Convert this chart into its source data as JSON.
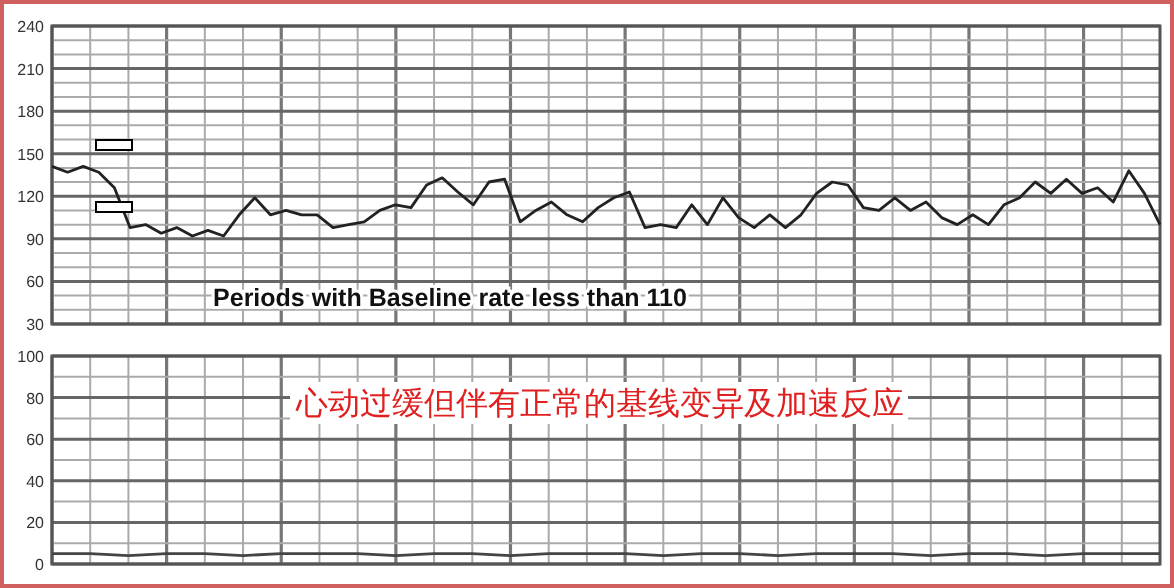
{
  "chart_data": [
    {
      "type": "line",
      "categories": [
        null,
        null,
        null,
        null,
        null,
        null,
        null,
        null,
        null,
        null,
        null,
        null,
        null,
        null,
        null,
        null,
        null,
        null,
        null,
        null,
        null,
        null,
        null,
        null,
        null,
        null,
        null,
        null,
        null,
        null,
        null,
        null,
        null,
        null,
        null,
        null,
        null,
        null,
        null,
        null,
        null,
        null,
        null,
        null,
        null,
        null,
        null,
        null,
        null,
        null,
        null,
        null,
        null,
        null,
        null,
        null,
        null,
        null,
        null,
        null,
        null,
        null,
        null,
        null,
        null,
        null,
        null,
        null,
        null,
        null,
        null,
        null
      ],
      "series": [
        {
          "color": "#222222",
          "values": [
            141,
            137,
            141,
            137,
            126,
            98,
            100,
            94,
            98,
            92,
            96,
            92,
            107,
            119,
            107,
            110,
            107,
            107,
            98,
            100,
            102,
            110,
            114,
            112,
            128,
            133,
            123,
            114,
            130,
            132,
            102,
            110,
            116,
            107,
            102,
            112,
            119,
            123,
            98,
            100,
            98,
            114,
            100,
            119,
            105,
            98,
            107,
            98,
            107,
            122,
            130,
            128,
            112,
            110,
            119,
            110,
            116,
            105,
            100,
            107,
            100,
            114,
            119,
            130,
            122,
            132,
            122,
            126,
            116,
            138,
            122,
            100
          ]
        }
      ],
      "ylim": [
        30,
        240
      ],
      "yticks": [
        30,
        {
          "value": 40,
          "label": null
        },
        {
          "value": 50,
          "label": null
        },
        60,
        {
          "value": 70,
          "label": null
        },
        {
          "value": 80,
          "label": null
        },
        90,
        {
          "value": 100,
          "label": null
        },
        {
          "value": 110,
          "label": null
        },
        120,
        {
          "value": 130,
          "label": null
        },
        {
          "value": 140,
          "label": null
        },
        150,
        {
          "value": 160,
          "label": null
        },
        {
          "value": 170,
          "label": null
        },
        180,
        {
          "value": 190,
          "label": null
        },
        {
          "value": 200,
          "label": null
        },
        210,
        {
          "value": 220,
          "label": null
        },
        {
          "value": 230,
          "label": null
        },
        240
      ],
      "grid": true,
      "annotations": [
        "Periods with Baseline rate less than 110"
      ]
    },
    {
      "type": "line",
      "categories": [
        null,
        null,
        null,
        null,
        null,
        null,
        null,
        null,
        null,
        null,
        null,
        null,
        null,
        null,
        null,
        null,
        null,
        null,
        null,
        null,
        null,
        null,
        null,
        null,
        null,
        null,
        null,
        null,
        null,
        null
      ],
      "series": [
        {
          "color": "#444444",
          "values": [
            5,
            5,
            4,
            5,
            5,
            4,
            5,
            5,
            5,
            4,
            5,
            5,
            4,
            5,
            5,
            5,
            4,
            5,
            5,
            4,
            5,
            5,
            5,
            4,
            5,
            5,
            4,
            5,
            5,
            5
          ]
        }
      ],
      "ylim": [
        0,
        100
      ],
      "yticks": [
        0,
        {
          "value": 10,
          "label": null
        },
        20,
        {
          "value": 30,
          "label": null
        },
        40,
        {
          "value": 50,
          "label": null
        },
        60,
        {
          "value": 70,
          "label": null
        },
        80,
        {
          "value": 90,
          "label": null
        },
        100
      ],
      "grid": true,
      "annotations": [
        "心动过缓但伴有正常的基线变异及加速反应"
      ]
    }
  ]
}
